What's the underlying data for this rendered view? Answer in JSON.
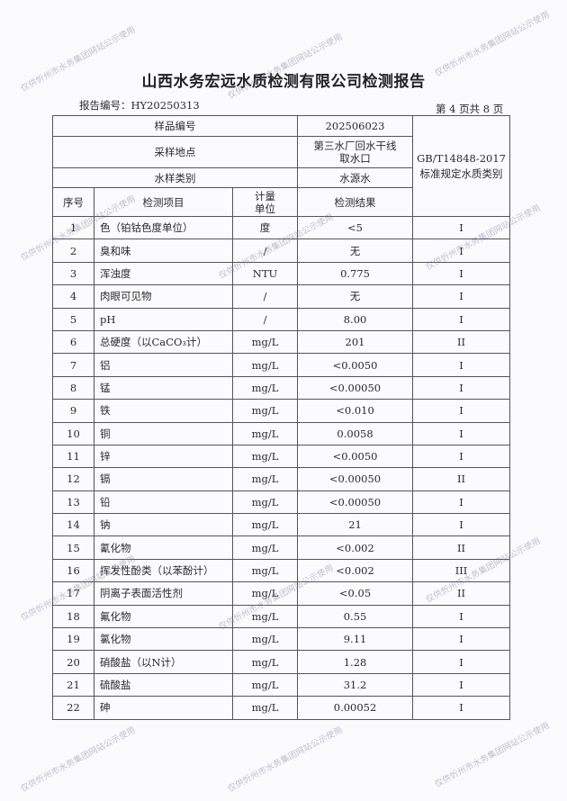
{
  "watermark": "仅供忻州市水务集团网站公示使用",
  "title": "山西水务宏远水质检测有限公司检测报告",
  "report_no": "报告编号：HY20250313",
  "page_no": "第 4 页共 8 页",
  "header": {
    "sample_no_label": "样品编号",
    "sample_no": "202506023",
    "location_label": "采样地点",
    "location_line1": "第三水厂回水干线",
    "location_line2": "取水口",
    "type_label": "水样类别",
    "type": "水源水",
    "standard_line1": "GB/T14848-2017",
    "standard_line2": "标准规定水质类别",
    "col_seq": "序号",
    "col_item": "检测项目",
    "col_unit_1": "计量",
    "col_unit_2": "单位",
    "col_result": "检测结果"
  },
  "rows": [
    {
      "seq": "1",
      "item": "色（铂钴色度单位）",
      "unit": "度",
      "result": "<5",
      "class": "I"
    },
    {
      "seq": "2",
      "item": "臭和味",
      "unit": "/",
      "result": "无",
      "class": "I"
    },
    {
      "seq": "3",
      "item": "浑浊度",
      "unit": "NTU",
      "result": "0.775",
      "class": "I"
    },
    {
      "seq": "4",
      "item": "肉眼可见物",
      "unit": "/",
      "result": "无",
      "class": "I"
    },
    {
      "seq": "5",
      "item": "pH",
      "unit": "/",
      "result": "8.00",
      "class": "I"
    },
    {
      "seq": "6",
      "item": "总硬度（以CaCO₃计）",
      "unit": "mg/L",
      "result": "201",
      "class": "II"
    },
    {
      "seq": "7",
      "item": "铝",
      "unit": "mg/L",
      "result": "<0.0050",
      "class": "I"
    },
    {
      "seq": "8",
      "item": "锰",
      "unit": "mg/L",
      "result": "<0.00050",
      "class": "I"
    },
    {
      "seq": "9",
      "item": "铁",
      "unit": "mg/L",
      "result": "<0.010",
      "class": "I"
    },
    {
      "seq": "10",
      "item": "铜",
      "unit": "mg/L",
      "result": "0.0058",
      "class": "I"
    },
    {
      "seq": "11",
      "item": "锌",
      "unit": "mg/L",
      "result": "<0.0050",
      "class": "I"
    },
    {
      "seq": "12",
      "item": "镉",
      "unit": "mg/L",
      "result": "<0.00050",
      "class": "II"
    },
    {
      "seq": "13",
      "item": "铅",
      "unit": "mg/L",
      "result": "<0.00050",
      "class": "I"
    },
    {
      "seq": "14",
      "item": "钠",
      "unit": "mg/L",
      "result": "21",
      "class": "I"
    },
    {
      "seq": "15",
      "item": "氰化物",
      "unit": "mg/L",
      "result": "<0.002",
      "class": "II"
    },
    {
      "seq": "16",
      "item": "挥发性酚类（以苯酚计）",
      "unit": "mg/L",
      "result": "<0.002",
      "class": "III"
    },
    {
      "seq": "17",
      "item": "阴离子表面活性剂",
      "unit": "mg/L",
      "result": "<0.05",
      "class": "II"
    },
    {
      "seq": "18",
      "item": "氟化物",
      "unit": "mg/L",
      "result": "0.55",
      "class": "I"
    },
    {
      "seq": "19",
      "item": "氯化物",
      "unit": "mg/L",
      "result": "9.11",
      "class": "I"
    },
    {
      "seq": "20",
      "item": "硝酸盐（以N计）",
      "unit": "mg/L",
      "result": "1.28",
      "class": "I"
    },
    {
      "seq": "21",
      "item": "硫酸盐",
      "unit": "mg/L",
      "result": "31.2",
      "class": "I"
    },
    {
      "seq": "22",
      "item": "砷",
      "unit": "mg/L",
      "result": "0.00052",
      "class": "I"
    }
  ]
}
